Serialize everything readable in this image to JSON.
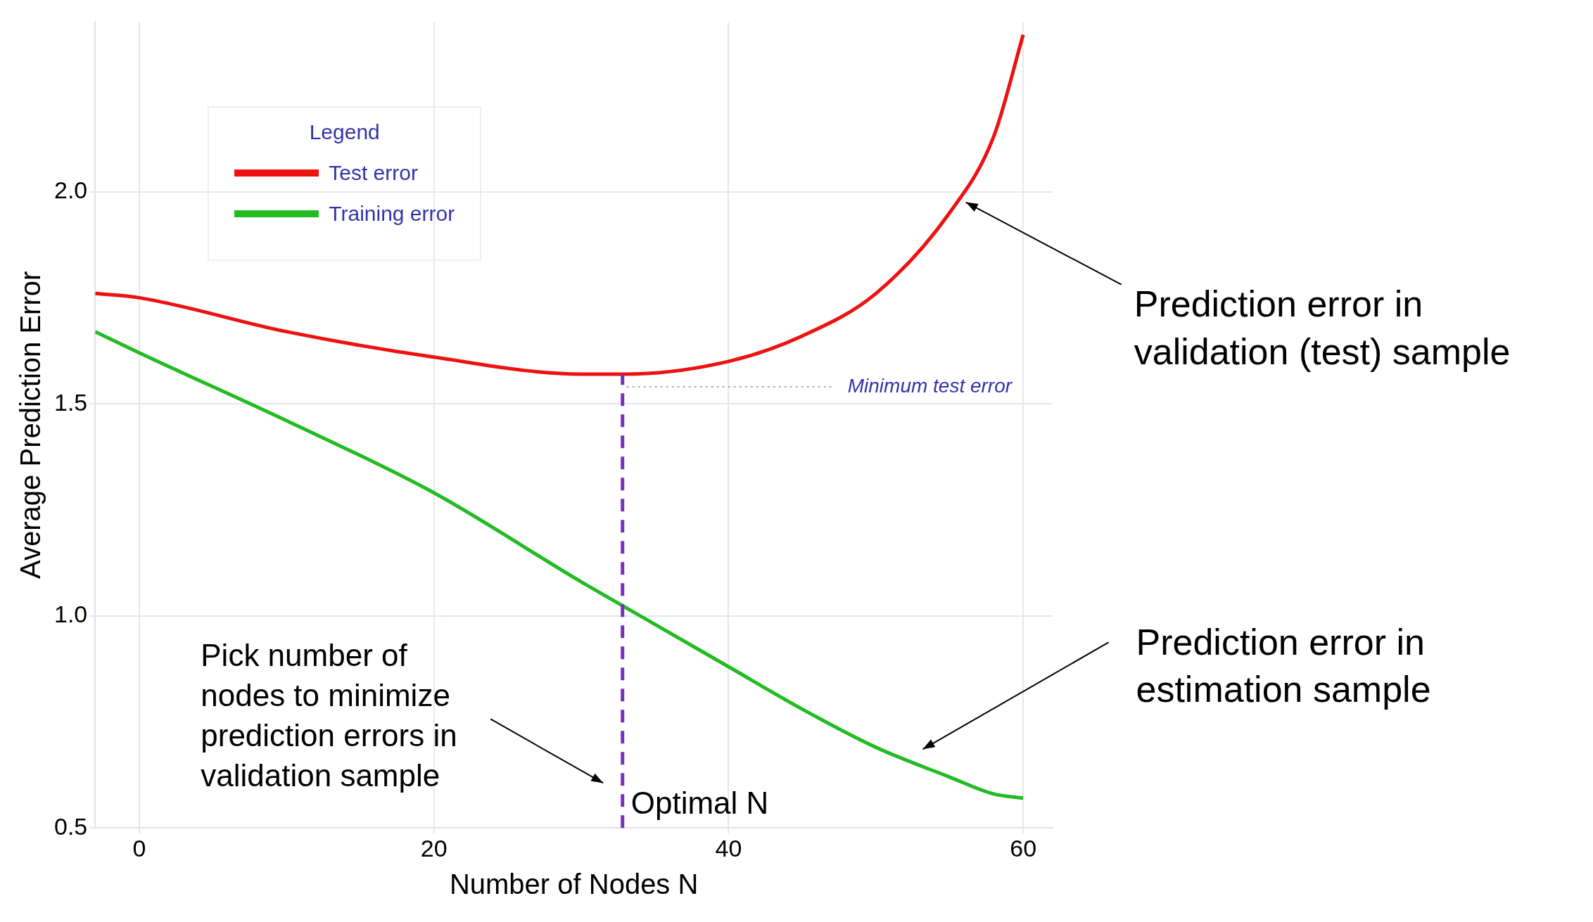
{
  "chart_data": {
    "type": "line",
    "xlabel": "Number of Nodes N",
    "ylabel": "Average Prediction Error",
    "legend_title": "Legend",
    "legend": "top left",
    "grid": true,
    "line_style": "solid",
    "marker": "none",
    "xlim": [
      -3,
      62
    ],
    "xticks": [
      0,
      20,
      40,
      60
    ],
    "ylim": [
      0.5,
      2.4
    ],
    "yticks": [
      0.5,
      {
        "value": 1,
        "label": "1.0"
      },
      1.5,
      {
        "value": 2,
        "label": "2.0"
      }
    ],
    "x": [
      -3,
      0,
      10,
      20,
      30,
      33,
      40,
      45,
      50,
      55,
      58,
      60
    ],
    "series": [
      {
        "name": "Test error",
        "color": "#ee1111",
        "values": [
          1.76,
          1.75,
          1.67,
          1.61,
          1.57,
          1.57,
          1.6,
          1.66,
          1.76,
          1.95,
          2.13,
          2.37
        ]
      },
      {
        "name": "Training error",
        "color": "#22bb22",
        "values": [
          1.67,
          1.62,
          1.46,
          1.29,
          1.08,
          1.02,
          0.88,
          0.78,
          0.69,
          0.62,
          0.58,
          0.57
        ]
      }
    ],
    "ref_lines": [
      {
        "axis": "x",
        "value": 32.8,
        "label": "Optimal N",
        "color": "#7b2fbe",
        "line_style": "dashed"
      },
      {
        "axis": "y",
        "value": 1.54,
        "label": "Minimum test error",
        "color": "#aaaaaa",
        "line_style": "dotted"
      }
    ],
    "annotations": [
      "Prediction error in validation (test) sample",
      "Prediction error in estimation sample",
      "Pick number of nodes to minimize prediction errors in validation sample"
    ]
  }
}
